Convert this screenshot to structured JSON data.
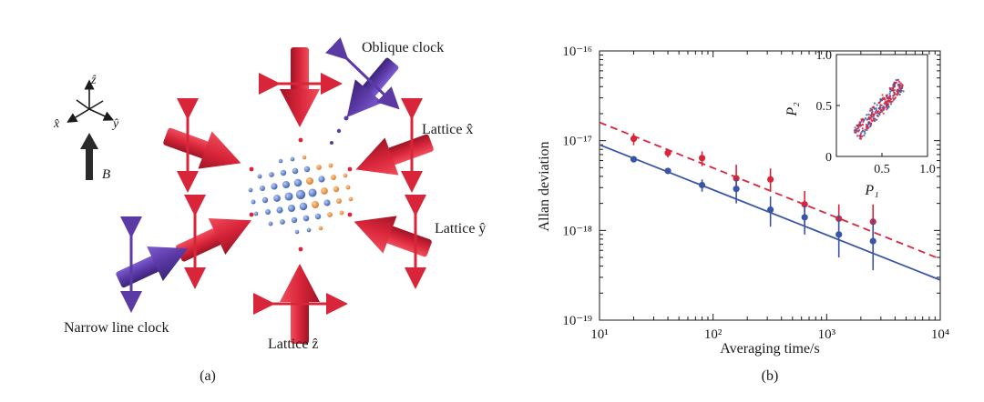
{
  "panel_a": {
    "caption": "(a)",
    "labels": {
      "oblique_clock": "Oblique clock",
      "lattice_x": "Lattice x̂",
      "lattice_y": "Lattice ŷ",
      "lattice_z": "Lattice ẑ",
      "narrow_line_clock": "Narrow line clock",
      "field": "B",
      "axis_x": "x̂",
      "axis_y": "ŷ",
      "axis_z": "ẑ"
    },
    "colors": {
      "lattice_beam": "#d9253a",
      "clock_beam": "#5b3aa6",
      "atom_blue": "#4a6fc0",
      "atom_orange": "#e8923a"
    }
  },
  "panel_b": {
    "caption": "(b)",
    "chart_data": [
      {
        "type": "scatter",
        "xlabel": "Averaging time/s",
        "ylabel": "Allan deviation",
        "xscale": "log",
        "yscale": "log",
        "xlim": [
          10,
          10000
        ],
        "ylim": [
          1e-19,
          1e-16
        ],
        "x_tick_labels": [
          "10¹",
          "10²",
          "10³",
          "10⁴"
        ],
        "y_tick_labels": [
          "10⁻¹⁹",
          "10⁻¹⁸",
          "10⁻¹⁷",
          "10⁻¹⁶"
        ],
        "series": [
          {
            "color": "#d9253a",
            "marker": "point",
            "x": [
              20,
              40,
              80,
              160,
              320,
              640,
              1280,
              2560
            ],
            "y": [
              1.05e-17,
              7.3e-18,
              6.4e-18,
              3.8e-18,
              3.7e-18,
              1.95e-18,
              1.35e-18,
              1.25e-18
            ],
            "y_err_low": [
              1.6e-18,
              8e-19,
              1.2e-18,
              1e-18,
              1e-18,
              8e-19,
              6e-19,
              7e-19
            ],
            "y_err_high": [
              1.6e-18,
              8e-19,
              1.2e-18,
              1.6e-18,
              1.2e-18,
              8e-19,
              6e-19,
              7e-19
            ],
            "fit": {
              "style": "dashed",
              "x": [
                10,
                10000
              ],
              "y": [
                1.6e-17,
                4.8e-19
              ]
            }
          },
          {
            "color": "#3a55a8",
            "marker": "point",
            "x": [
              20,
              40,
              80,
              160,
              320,
              640,
              1280,
              2560
            ],
            "y": [
              6.2e-18,
              4.6e-18,
              3.2e-18,
              2.9e-18,
              1.7e-18,
              1.4e-18,
              9e-19,
              7.6e-19
            ],
            "y_err_low": [
              4e-19,
              3e-19,
              5e-19,
              9e-19,
              6e-19,
              5e-19,
              4e-19,
              4e-19
            ],
            "y_err_high": [
              4e-19,
              3e-19,
              5e-19,
              9e-19,
              7e-19,
              5e-19,
              6e-19,
              6e-19
            ],
            "fit": {
              "style": "solid",
              "x": [
                10,
                10000
              ],
              "y": [
                9e-18,
                2.8e-19
              ]
            }
          }
        ]
      },
      {
        "type": "scatter",
        "name": "inset",
        "xlabel": "P₁",
        "ylabel": "P₂",
        "xlim": [
          0,
          1.0
        ],
        "ylim": [
          0,
          1.0
        ],
        "x_tick_labels": [
          "0.5",
          "1.0"
        ],
        "y_tick_labels": [
          "0",
          "0.5",
          "1.0"
        ],
        "series": [
          {
            "color": "#3a55a8",
            "x_range": [
              0.22,
              0.72
            ],
            "y_range": [
              0.22,
              0.72
            ]
          },
          {
            "color": "#d9253a",
            "x_range": [
              0.22,
              0.72
            ],
            "y_range": [
              0.22,
              0.72
            ]
          }
        ]
      }
    ]
  }
}
